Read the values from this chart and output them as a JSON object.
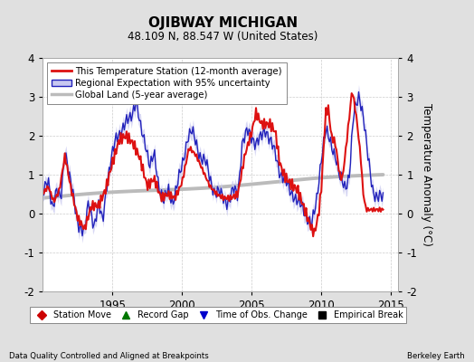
{
  "title": "OJIBWAY MICHIGAN",
  "subtitle": "48.109 N, 88.547 W (United States)",
  "ylabel": "Temperature Anomaly (°C)",
  "xlabel_note": "Data Quality Controlled and Aligned at Breakpoints",
  "credit": "Berkeley Earth",
  "ylim": [
    -2,
    4
  ],
  "xlim": [
    1990.0,
    2015.5
  ],
  "xticks": [
    1995,
    2000,
    2005,
    2010,
    2015
  ],
  "yticks": [
    -2,
    -1,
    0,
    1,
    2,
    3,
    4
  ],
  "bg_color": "#e0e0e0",
  "plot_bg_color": "#ffffff",
  "grid_color": "#cccccc",
  "bottom_legend": [
    {
      "label": "Station Move",
      "marker": "D",
      "color": "#cc0000"
    },
    {
      "label": "Record Gap",
      "marker": "^",
      "color": "#007700"
    },
    {
      "label": "Time of Obs. Change",
      "marker": "v",
      "color": "#0000cc"
    },
    {
      "label": "Empirical Break",
      "marker": "s",
      "color": "#000000"
    }
  ]
}
